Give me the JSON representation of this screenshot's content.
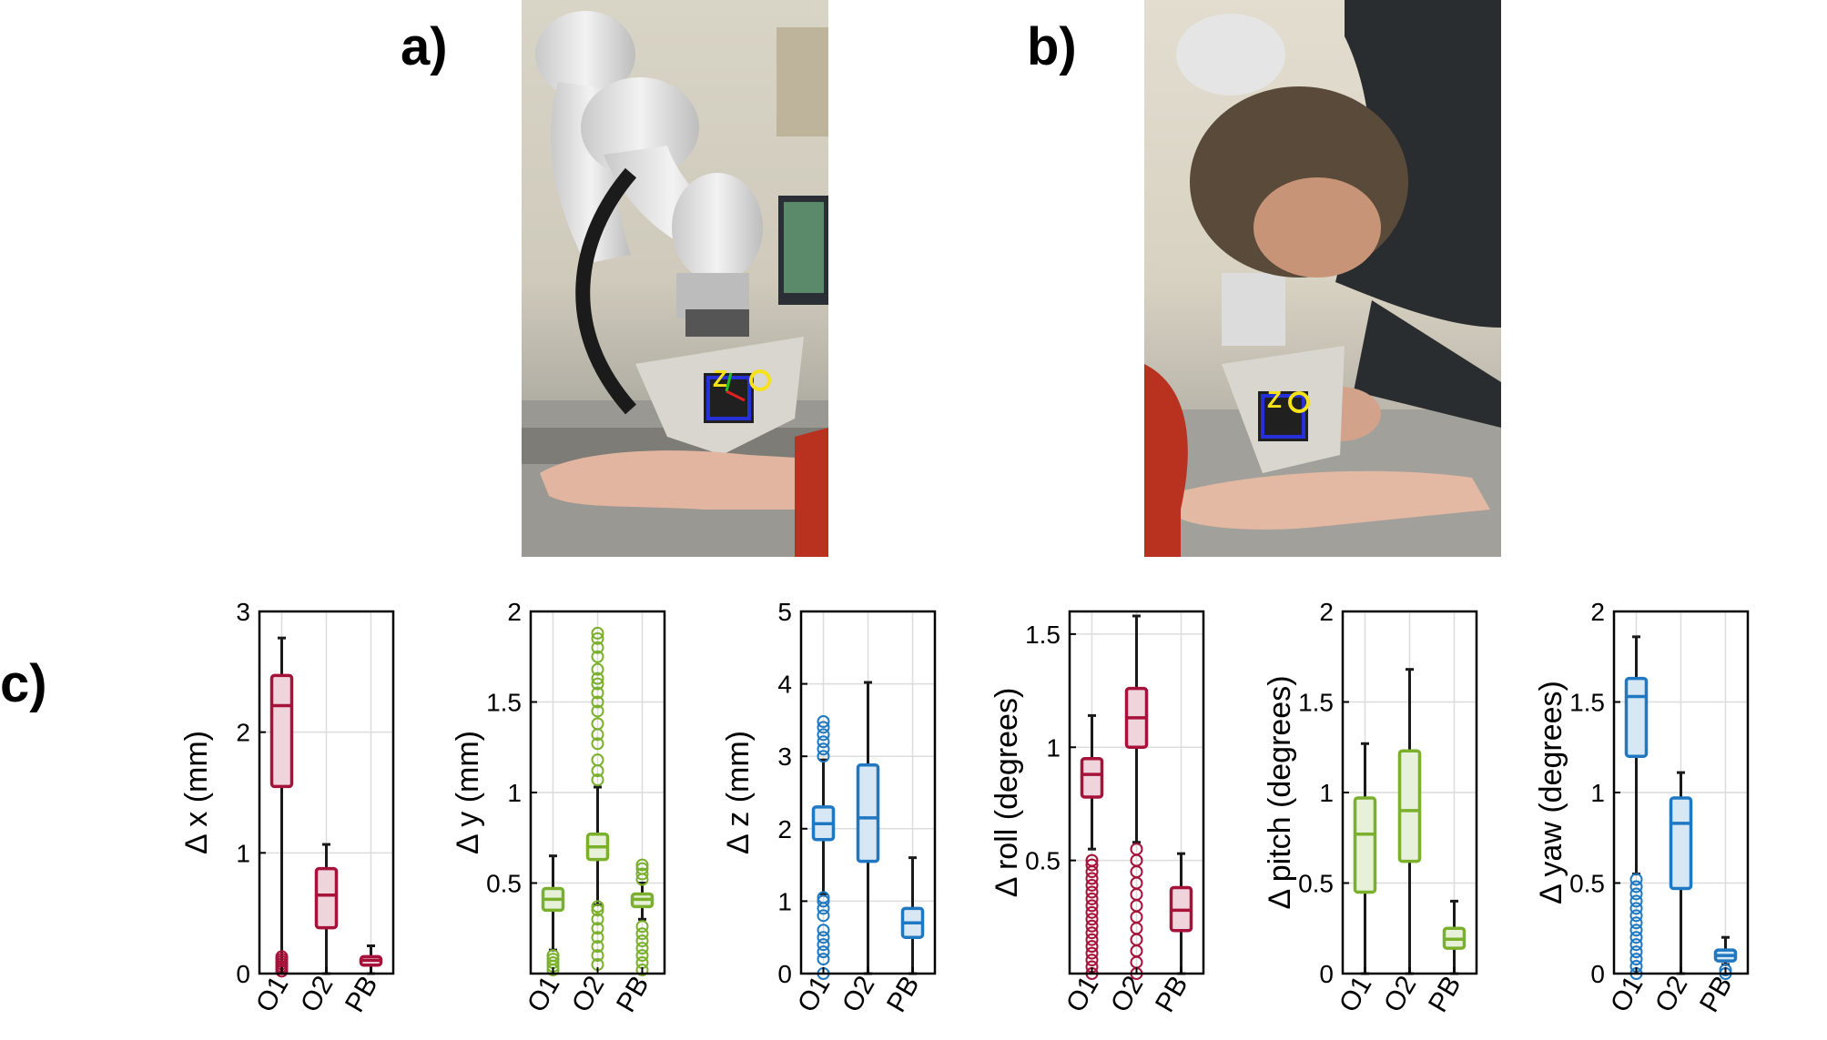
{
  "panels": {
    "a": "a)",
    "b": "b)",
    "c": "c)"
  },
  "photos": [
    {
      "panel": "a",
      "subject": "robot-arm-with-probe-over-forearm"
    },
    {
      "panel": "b",
      "subject": "person-guiding-probe-over-forearm"
    }
  ],
  "colors": {
    "red": "#A6123A",
    "green": "#7AB02C",
    "blue": "#1F78C1"
  },
  "chart_data": [
    {
      "type": "box",
      "ylabel": "Δ x (mm)",
      "categories": [
        "O1",
        "O2",
        "PB"
      ],
      "ylim": [
        0,
        3
      ],
      "yticks": [
        0,
        1,
        2,
        3
      ],
      "ytick_labels": [
        "0",
        "1",
        "2",
        "3"
      ],
      "color": "#A6123A",
      "grid": true,
      "boxes": [
        {
          "min": 0.0,
          "q1": 1.55,
          "median": 2.22,
          "q3": 2.47,
          "max": 2.78,
          "outliers": [
            0.02,
            0.04,
            0.06,
            0.08,
            0.1,
            0.12,
            0.14
          ]
        },
        {
          "min": 0.0,
          "q1": 0.38,
          "median": 0.65,
          "q3": 0.87,
          "max": 1.07,
          "outliers": []
        },
        {
          "min": 0.0,
          "q1": 0.07,
          "median": 0.11,
          "q3": 0.14,
          "max": 0.23,
          "outliers": []
        }
      ]
    },
    {
      "type": "box",
      "ylabel": "Δ y (mm)",
      "categories": [
        "O1",
        "O2",
        "PB"
      ],
      "ylim": [
        0,
        2
      ],
      "yticks": [
        0.5,
        1,
        1.5,
        2
      ],
      "ytick_labels": [
        "0.5",
        "1",
        "1.5",
        "2"
      ],
      "color": "#7AB02C",
      "grid": true,
      "boxes": [
        {
          "min": 0.13,
          "q1": 0.35,
          "median": 0.41,
          "q3": 0.47,
          "max": 0.65,
          "outliers": [
            0.02,
            0.04,
            0.06,
            0.08,
            0.1
          ]
        },
        {
          "min": 0.38,
          "q1": 0.63,
          "median": 0.7,
          "q3": 0.77,
          "max": 1.03,
          "outliers": [
            0.05,
            0.1,
            0.15,
            0.2,
            0.25,
            0.3,
            0.35,
            0.37,
            1.07,
            1.12,
            1.18,
            1.27,
            1.32,
            1.38,
            1.45,
            1.5,
            1.55,
            1.6,
            1.63,
            1.68,
            1.75,
            1.8,
            1.85,
            1.88
          ]
        },
        {
          "min": 0.3,
          "q1": 0.37,
          "median": 0.41,
          "q3": 0.44,
          "max": 0.5,
          "outliers": [
            0.02,
            0.06,
            0.1,
            0.14,
            0.18,
            0.22,
            0.26,
            0.52,
            0.55,
            0.58,
            0.6
          ]
        }
      ]
    },
    {
      "type": "box",
      "ylabel": "Δ z (mm)",
      "categories": [
        "O1",
        "O2",
        "PB"
      ],
      "ylim": [
        0,
        5
      ],
      "yticks": [
        0,
        1,
        2,
        3,
        4,
        5
      ],
      "ytick_labels": [
        "0",
        "1",
        "2",
        "3",
        "4",
        "5"
      ],
      "color": "#1F78C1",
      "grid": true,
      "boxes": [
        {
          "min": 1.1,
          "q1": 1.85,
          "median": 2.07,
          "q3": 2.3,
          "max": 2.95,
          "outliers": [
            0.0,
            0.2,
            0.3,
            0.4,
            0.5,
            0.6,
            0.8,
            0.9,
            1.0,
            1.05,
            3.0,
            3.1,
            3.2,
            3.3,
            3.4,
            3.48
          ]
        },
        {
          "min": 0.0,
          "q1": 1.55,
          "median": 2.15,
          "q3": 2.88,
          "max": 4.02,
          "outliers": []
        },
        {
          "min": 0.0,
          "q1": 0.5,
          "median": 0.7,
          "q3": 0.9,
          "max": 1.6,
          "outliers": []
        }
      ]
    },
    {
      "type": "box",
      "ylabel": "Δ roll (degrees)",
      "categories": [
        "O1",
        "O2",
        "PB"
      ],
      "ylim": [
        0,
        1.6
      ],
      "yticks": [
        0.5,
        1,
        1.5
      ],
      "ytick_labels": [
        "0.5",
        "1",
        "1.5"
      ],
      "color": "#A6123A",
      "grid": true,
      "boxes": [
        {
          "min": 0.55,
          "q1": 0.78,
          "median": 0.88,
          "q3": 0.95,
          "max": 1.14,
          "outliers": [
            0.0,
            0.03,
            0.06,
            0.09,
            0.12,
            0.15,
            0.18,
            0.21,
            0.24,
            0.27,
            0.3,
            0.33,
            0.36,
            0.39,
            0.42,
            0.45,
            0.48,
            0.5
          ]
        },
        {
          "min": 0.58,
          "q1": 1.0,
          "median": 1.13,
          "q3": 1.26,
          "max": 1.58,
          "outliers": [
            0.0,
            0.05,
            0.1,
            0.15,
            0.2,
            0.25,
            0.3,
            0.35,
            0.4,
            0.45,
            0.5,
            0.55
          ]
        },
        {
          "min": 0.0,
          "q1": 0.19,
          "median": 0.28,
          "q3": 0.38,
          "max": 0.53,
          "outliers": []
        }
      ]
    },
    {
      "type": "box",
      "ylabel": "Δ pitch (degrees)",
      "categories": [
        "O1",
        "O2",
        "PB"
      ],
      "ylim": [
        0,
        2
      ],
      "yticks": [
        0,
        0.5,
        1,
        1.5,
        2
      ],
      "ytick_labels": [
        "0",
        "0.5",
        "1",
        "1.5",
        "2"
      ],
      "color": "#7AB02C",
      "grid": true,
      "boxes": [
        {
          "min": 0.0,
          "q1": 0.45,
          "median": 0.77,
          "q3": 0.97,
          "max": 1.27,
          "outliers": []
        },
        {
          "min": 0.0,
          "q1": 0.62,
          "median": 0.9,
          "q3": 1.23,
          "max": 1.68,
          "outliers": []
        },
        {
          "min": 0.0,
          "q1": 0.14,
          "median": 0.19,
          "q3": 0.25,
          "max": 0.4,
          "outliers": []
        }
      ]
    },
    {
      "type": "box",
      "ylabel": "Δ yaw (degrees)",
      "categories": [
        "O1",
        "O2",
        "PB"
      ],
      "ylim": [
        0,
        2
      ],
      "yticks": [
        0,
        0.5,
        1,
        1.5,
        2
      ],
      "ytick_labels": [
        "0",
        "0.5",
        "1",
        "1.5",
        "2"
      ],
      "color": "#1F78C1",
      "grid": true,
      "boxes": [
        {
          "min": 0.55,
          "q1": 1.2,
          "median": 1.53,
          "q3": 1.63,
          "max": 1.86,
          "outliers": [
            0.0,
            0.04,
            0.08,
            0.12,
            0.16,
            0.2,
            0.24,
            0.28,
            0.32,
            0.36,
            0.4,
            0.44,
            0.48,
            0.52
          ]
        },
        {
          "min": 0.0,
          "q1": 0.47,
          "median": 0.83,
          "q3": 0.97,
          "max": 1.11,
          "outliers": []
        },
        {
          "min": 0.05,
          "q1": 0.07,
          "median": 0.1,
          "q3": 0.13,
          "max": 0.2,
          "outliers": [
            0.0,
            0.02
          ]
        }
      ]
    }
  ]
}
